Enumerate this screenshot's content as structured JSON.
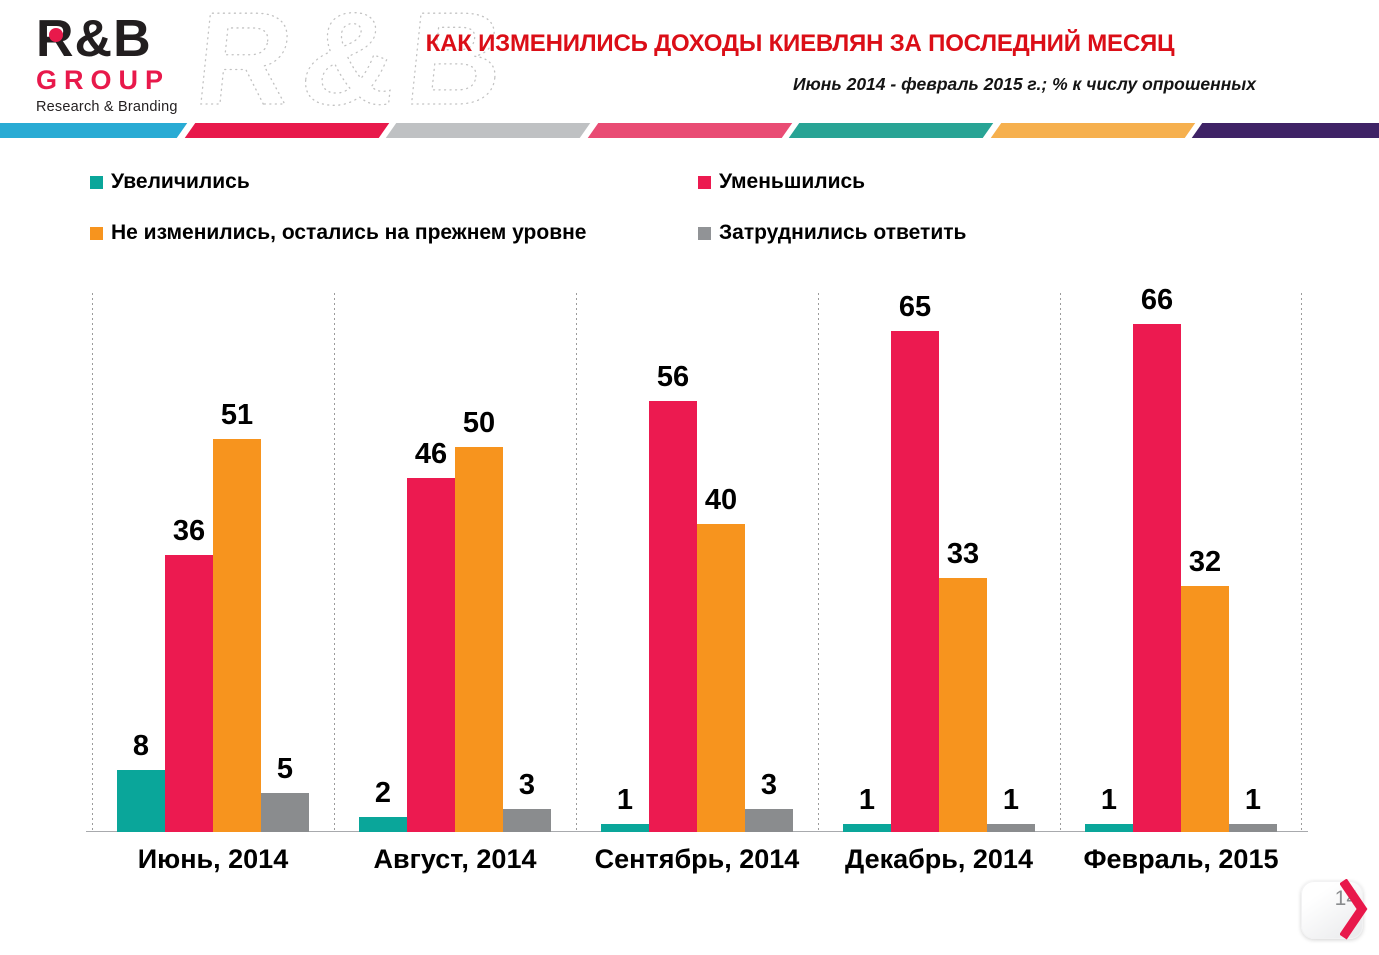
{
  "header": {
    "logo": {
      "brand": "R&B",
      "group": "GROUP",
      "tagline": "Research & Branding"
    },
    "watermark": "R&B",
    "title": "КАК ИЗМЕНИЛИСЬ ДОХОДЫ КИЕВЛЯН ЗА ПОСЛЕДНИЙ МЕСЯЦ",
    "subtitle": "Июнь 2014  - февраль 2015 г.; % к числу опрошенных",
    "title_color": "#db0e17"
  },
  "stripe_colors": [
    "#29abd4",
    "#e8194b",
    "#bfc1c3",
    "#e94c74",
    "#28a495",
    "#f6b04e",
    "#3f2366"
  ],
  "legend": [
    {
      "label": "Увеличились",
      "color": "#0aa69a"
    },
    {
      "label": "Уменьшились",
      "color": "#ec1a50"
    },
    {
      "label": "Не изменились, остались на прежнем уровне",
      "color": "#f7941e"
    },
    {
      "label": "Затруднились ответить",
      "color": "#919396"
    }
  ],
  "chart_data": {
    "type": "bar",
    "title": "КАК ИЗМЕНИЛИСЬ ДОХОДЫ КИЕВЛЯН ЗА ПОСЛЕДНИЙ МЕСЯЦ",
    "subtitle": "Июнь 2014  - февраль 2015 г.; % к числу опрошенных",
    "categories": [
      "Июнь, 2014",
      "Август, 2014",
      "Сентябрь, 2014",
      "Декабрь, 2014",
      "Февраль, 2015"
    ],
    "series": [
      {
        "name": "Увеличились",
        "color": "#0aa69a",
        "values": [
          8,
          2,
          1,
          1,
          1
        ]
      },
      {
        "name": "Уменьшились",
        "color": "#ec1a50",
        "values": [
          36,
          46,
          56,
          65,
          66
        ]
      },
      {
        "name": "Не изменились, остались на прежнем уровне",
        "color": "#f7941e",
        "values": [
          51,
          50,
          40,
          33,
          32
        ]
      },
      {
        "name": "Затруднились ответить",
        "color": "#8a8c8e",
        "values": [
          5,
          3,
          3,
          1,
          1
        ]
      }
    ],
    "ylim": [
      0,
      70
    ],
    "ylabel": "",
    "xlabel": "",
    "grid": "vertical-dashed-group-separators",
    "legend_position": "top",
    "data_labels": true
  },
  "footer": {
    "page_number": "14"
  }
}
